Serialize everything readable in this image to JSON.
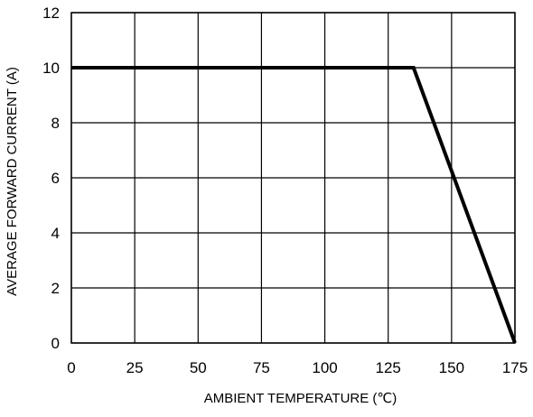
{
  "chart_data": {
    "type": "line",
    "title": "",
    "xlabel": "AMBIENT TEMPERATURE (℃)",
    "ylabel": "AVERAGE FORWARD CURRENT (A)",
    "xlim": [
      0,
      175
    ],
    "ylim": [
      0,
      12
    ],
    "xticks": [
      "0",
      "25",
      "50",
      "75",
      "100",
      "125",
      "150",
      "175"
    ],
    "yticks": [
      "0",
      "2",
      "4",
      "6",
      "8",
      "10",
      "12"
    ],
    "xtick_values": [
      0,
      25,
      50,
      75,
      100,
      125,
      150,
      175
    ],
    "ytick_values": [
      0,
      2,
      4,
      6,
      8,
      10,
      12
    ],
    "grid": true,
    "series": [
      {
        "x": [
          0,
          135,
          175
        ],
        "y": [
          10,
          10,
          0
        ]
      }
    ]
  },
  "colors": {
    "line": "#000000",
    "grid": "#000000",
    "background": "#ffffff"
  }
}
